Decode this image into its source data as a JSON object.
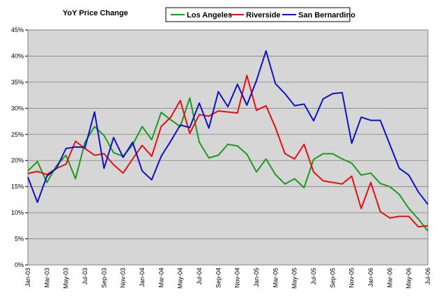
{
  "chart_data": {
    "type": "line",
    "title": "YoY Price Change",
    "categories": [
      "Jan-03",
      null,
      "Mar-03",
      null,
      "May-03",
      null,
      "Jul-03",
      null,
      "Sep-03",
      null,
      "Nov-03",
      null,
      "Jan-04",
      null,
      "Mar-04",
      null,
      "May-04",
      null,
      "Jul-04",
      null,
      "Sep-04",
      null,
      "Nov-04",
      null,
      "Jan-05",
      null,
      "Mar-05",
      null,
      "May-05",
      null,
      "Jul-05",
      null,
      "Sep-05",
      null,
      "Nov-05",
      null,
      "Jan-06",
      null,
      "Mar-06",
      null,
      "May-06",
      null,
      "Jul-06"
    ],
    "series": [
      {
        "name": "Los Angeles",
        "color": "#1a9a1a",
        "values": [
          18,
          19.8,
          15.8,
          19,
          21,
          16.5,
          23.5,
          26.5,
          24.8,
          21.5,
          20.8,
          23,
          26.5,
          24,
          29.2,
          27.8,
          26.5,
          32,
          23.5,
          20.5,
          21,
          23.1,
          22.8,
          21.2,
          17.8,
          20.3,
          17.3,
          15.5,
          16.5,
          14.8,
          20.2,
          21.3,
          21.3,
          20.3,
          19.5,
          17.2,
          17.6,
          15.6,
          15,
          13.5,
          10.8,
          8.8,
          6.5
        ]
      },
      {
        "name": "Riverside",
        "color": "#e01010",
        "values": [
          17.5,
          17.9,
          17.3,
          18.5,
          19.3,
          23.7,
          22.3,
          21,
          21.3,
          19.2,
          17.6,
          20.3,
          22.9,
          20.8,
          26.5,
          28.3,
          31.5,
          25.2,
          28.8,
          28.5,
          29.5,
          29.3,
          29.1,
          36.3,
          29.6,
          30.5,
          26.3,
          21.3,
          20.3,
          23.1,
          17.8,
          16.1,
          15.8,
          15.5,
          17,
          10.8,
          15.8,
          10.2,
          9,
          9.3,
          9.3,
          7.3,
          7.5
        ]
      },
      {
        "name": "San Bernardino",
        "color": "#1010c0",
        "values": [
          16.8,
          12,
          17,
          18.5,
          22.3,
          22.6,
          22.5,
          29.3,
          18.5,
          24.4,
          20.6,
          23.5,
          18,
          16.3,
          20.8,
          23.7,
          26.8,
          26.3,
          31,
          26.2,
          33.2,
          30.3,
          34.6,
          30.6,
          35.3,
          41,
          34.7,
          32.8,
          30.5,
          30.8,
          27.6,
          31.8,
          32.8,
          33,
          23.3,
          28.3,
          27.7,
          27.7,
          23.1,
          18.5,
          17.2,
          14,
          11.6
        ]
      }
    ],
    "ylim": [
      0,
      45
    ],
    "yticks": [
      {
        "value": 0,
        "label": "0%"
      },
      {
        "value": 5,
        "label": "5%"
      },
      {
        "value": 10,
        "label": "10%"
      },
      {
        "value": 15,
        "label": "15%"
      },
      {
        "value": 20,
        "label": "20%"
      },
      {
        "value": 25,
        "label": "25%"
      },
      {
        "value": 30,
        "label": "30%"
      },
      {
        "value": 35,
        "label": "35%"
      },
      {
        "value": 40,
        "label": "40%"
      },
      {
        "value": 45,
        "label": "45%"
      }
    ],
    "grid": true
  }
}
